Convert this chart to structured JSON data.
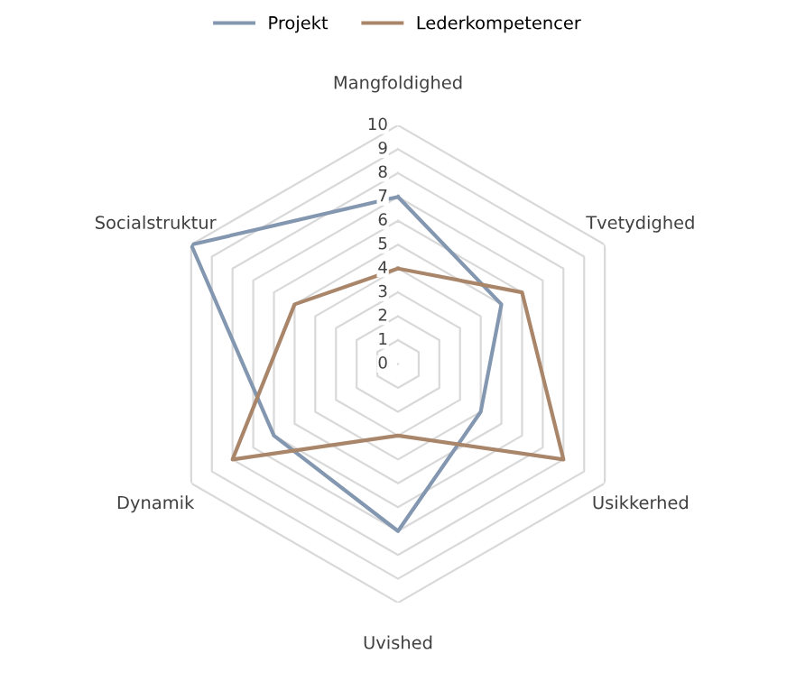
{
  "chart_data": {
    "type": "radar",
    "categories": [
      "Mangfoldighed",
      "Tvetydighed",
      "Usikkerhed",
      "Uvished",
      "Dynamik",
      "Socialstruktur"
    ],
    "series": [
      {
        "name": "Projekt",
        "color": "#8497b0",
        "values": [
          7,
          5,
          4,
          7,
          6,
          10
        ]
      },
      {
        "name": "Lederkompetencer",
        "color": "#a9856a",
        "values": [
          4,
          6,
          8,
          3,
          8,
          5
        ]
      }
    ],
    "ylim": [
      0,
      10
    ],
    "yticks": [
      0,
      1,
      2,
      3,
      4,
      5,
      6,
      7,
      8,
      9,
      10
    ],
    "grid": true,
    "legend": "top",
    "marker": "none",
    "line_style": "solid"
  }
}
